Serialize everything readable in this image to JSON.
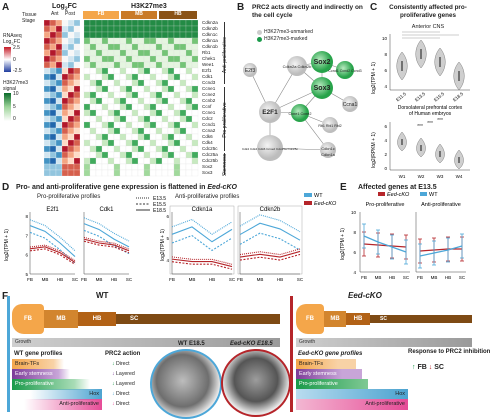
{
  "colors": {
    "accent_red": "#b5252a",
    "accent_blue": "#4da7d8",
    "green": "#1a9a4a",
    "fb": "#f4a64a",
    "mb": "#c97a27",
    "hb": "#b26216",
    "sc": "#7e4a14",
    "purple": "#7d3c98",
    "pink": "#e64c97"
  },
  "panelA": {
    "label": "A",
    "logfc_title": "Log2FC",
    "h3_title": "H3K27me3",
    "tissue": "Tissue",
    "stage": "Stage",
    "ant": "Ant",
    "post": "Post",
    "regions": [
      "FB",
      "MB",
      "HB"
    ],
    "rnaseq_label": "RNAseq",
    "rnaseq_sub": "Log2FC",
    "scale_hi": "2.5",
    "scale_mid": "0",
    "scale_lo": "-2.5",
    "h3_label": "H3K27me3",
    "h3_sub": "signal",
    "h3_hi": "10",
    "h3_mid": "5",
    "h3_lo": "0",
    "genes": [
      "Cdkn2a",
      "Cdkn2b",
      "Cdkn1c",
      "Cdkn1a",
      "Cdkn1b",
      "Rb1",
      "Chek1",
      "Wee1",
      "E2f1",
      "Cdk1",
      "Ccnd3",
      "Ccne1",
      "Ccne2",
      "Ccnb2",
      "Ccnf",
      "Ccne1",
      "Cdc2",
      "Ccnd1",
      "Ccna2",
      "Cdk6",
      "Cdk4",
      "Cdc25c",
      "Cdc25a",
      "Cdc25b",
      "Sox2",
      "Sox3"
    ],
    "groups": [
      "Anti-proliferative",
      "Pro-proliferative",
      "Stemness"
    ]
  },
  "panelB": {
    "label": "B",
    "title": "PRC2 acts directly and indirectly on the cell cycle",
    "leg_unmarked": "H3K27me3-unmarked",
    "leg_marked": "H3K27me3-marked",
    "nodes": {
      "sox2": "Sox2",
      "sox3": "Sox3",
      "e2f1": "E2F1",
      "e2f3": "E2f3",
      "cdkn2": "Cdkn2a Cdkn2b",
      "ccne": "Ccne1 Ccne2",
      "ccnd": "Ccnd1 Ccnd2 Ccnd3",
      "rb": "Rb1 Rbl1 Rbl2",
      "ccna": "Ccna1",
      "cdk": "Cdk2 Cdk4 Cdk6 Ccne2 Cdc25a Cdc25c",
      "cdkn1c": "Cdkn1c",
      "cdkn1a": "Cdkn1a"
    }
  },
  "panelC": {
    "label": "C",
    "title": "Consistently affected pro-proliferative genes",
    "sub1": "Anterior CNS",
    "ylabel1": "log2(TPM + 1)",
    "x1": [
      "E11.5",
      "E13.5",
      "E15.5",
      "E18.5"
    ],
    "yticks1": [
      "10",
      "8",
      "6",
      "4"
    ],
    "sub2": "Dorsolateral prefrontal cortex of Human embryos",
    "ylabel2": "log2(RPKM + 1)",
    "x2": [
      "W1",
      "W2",
      "W3",
      "W4"
    ],
    "yticks2": [
      "6",
      "4",
      "2",
      "0"
    ],
    "sig": "***"
  },
  "panelD": {
    "label": "D",
    "title": "Pro- and anti-proliferative gene expression is flattened in ",
    "title_italic": "Eed-cKO",
    "pro": "Pro-proliferative profiles",
    "anti": "Anti-proliferative profiles",
    "genes": [
      "E2f1",
      "Cdk1",
      "Cdkn1a",
      "Cdkn2b"
    ],
    "x": [
      "FB",
      "MB",
      "HB",
      "SC"
    ],
    "ylabel": "log2(TPM + 1)",
    "yticks_left": [
      "8",
      "7",
      "6",
      "5"
    ],
    "yticks_right": [
      "6",
      "5",
      "4",
      "3",
      "2"
    ],
    "stages": [
      "E13.5",
      "E15.5",
      "E18.5"
    ],
    "leg_wt": "WT",
    "leg_ko": "Eed-cKO",
    "chart_data": {
      "type": "line",
      "x": [
        "FB",
        "MB",
        "HB",
        "SC"
      ],
      "series": [
        {
          "name": "WT",
          "gene": "E2f1",
          "values": [
            7.5,
            7.2,
            6.6,
            5.9
          ]
        },
        {
          "name": "Eed-cKO",
          "gene": "E2f1",
          "values": [
            6.3,
            6.4,
            6.1,
            5.6
          ]
        },
        {
          "name": "WT",
          "gene": "Cdk1",
          "values": [
            7.6,
            7.3,
            6.8,
            6.4
          ]
        },
        {
          "name": "Eed-cKO",
          "gene": "Cdk1",
          "values": [
            6.8,
            6.6,
            6.5,
            6.2
          ]
        },
        {
          "name": "WT",
          "gene": "Cdkn1a",
          "values": [
            5.6,
            5.9,
            5.3,
            5.8
          ]
        },
        {
          "name": "Eed-cKO",
          "gene": "Cdkn1a",
          "values": [
            4.6,
            4.5,
            4.5,
            4.3
          ]
        },
        {
          "name": "WT",
          "gene": "Cdkn2b",
          "values": [
            3.4,
            3.8,
            3.6,
            3.2
          ]
        },
        {
          "name": "Eed-cKO",
          "gene": "Cdkn2b",
          "values": [
            2.6,
            2.7,
            2.6,
            2.8
          ]
        }
      ]
    }
  },
  "panelE": {
    "label": "E",
    "title": "Affected genes at E13.5",
    "pro": "Pro-proliferative",
    "anti": "Anti-proliferative",
    "ylabel": "log2(TPM + 1)",
    "leg_ko": "Eed-cKO",
    "leg_wt": "WT",
    "yticks": [
      "10",
      "8",
      "6",
      "4"
    ],
    "x": [
      "FB",
      "MB",
      "HB",
      "SC"
    ],
    "chart_data": {
      "type": "line",
      "x": [
        "FB",
        "MB",
        "HB",
        "SC"
      ],
      "series": [
        {
          "name": "Eed-cKO",
          "group": "Pro-proliferative",
          "values": [
            6.8,
            6.7,
            6.6,
            6.5
          ]
        },
        {
          "name": "WT",
          "group": "Pro-proliferative",
          "values": [
            7.6,
            7.0,
            6.5,
            6.0
          ]
        },
        {
          "name": "Eed-cKO",
          "group": "Anti-proliferative",
          "values": [
            6.1,
            6.2,
            6.3,
            6.3
          ]
        },
        {
          "name": "WT",
          "group": "Anti-proliferative",
          "values": [
            5.6,
            5.9,
            6.2,
            6.6
          ]
        }
      ]
    }
  },
  "panelF": {
    "label": "F",
    "wt": "WT",
    "ko": "Eed-cKO",
    "regions": [
      "FB",
      "MB",
      "HB",
      "SC"
    ],
    "growth": "Growth",
    "wt_embryo": "WT E18.5",
    "ko_embryo": "Eed-cKO E18.5",
    "wt_profiles": "WT gene profiles",
    "prc2_action": "PRC2 action",
    "ko_profiles": "Eed-cKO gene profiles",
    "response": "Response to PRC2 inhibition",
    "bars": [
      "Brain-TFs",
      "Early stemness",
      "Pro-proliferative",
      "Hox",
      "Anti-proliferative"
    ],
    "actions": [
      "Direct",
      "Layered",
      "Layered",
      "Direct",
      "Direct"
    ],
    "ko_bars": [
      "Brain-TFs",
      "Early stemness",
      "Pro-proliferative",
      "Hox",
      "Anti-proliferative"
    ],
    "fb_sc": "FB",
    "sc": "SC"
  }
}
